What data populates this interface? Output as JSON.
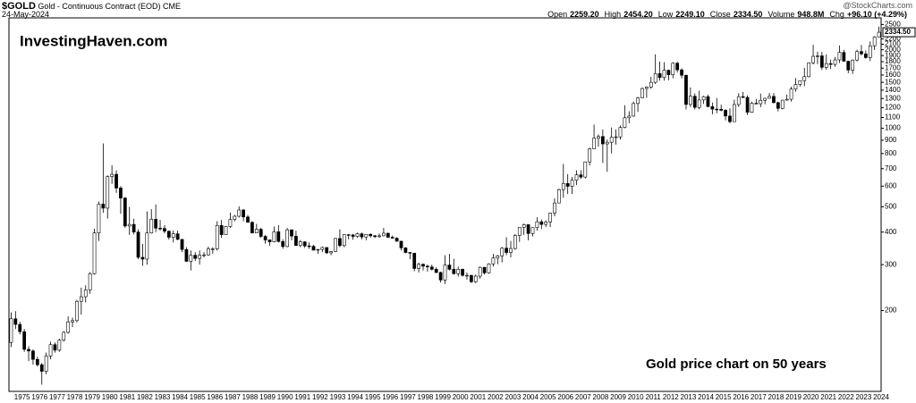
{
  "header": {
    "symbol": "$GOLD",
    "description": "Gold - Continuous Contract (EOD) CME",
    "date": "24-May-2024",
    "source": "@StockCharts.com",
    "stats": [
      {
        "label": "Open",
        "value": "2259.20"
      },
      {
        "label": "High",
        "value": "2454.20"
      },
      {
        "label": "Low",
        "value": "2249.10"
      },
      {
        "label": "Close",
        "value": "2334.50"
      },
      {
        "label": "Volume",
        "value": "948.8M"
      },
      {
        "label": "Chg",
        "value": "+96.10 (+4.29%)"
      }
    ]
  },
  "chart_data": {
    "type": "candlestick",
    "watermark": "InvestingHaven.com",
    "annotation": "Gold price chart on 50 years",
    "log_y": true,
    "up_color": "#ffffff",
    "down_color": "#000000",
    "ylim": [
      98,
      2650
    ],
    "yticks": [
      200,
      300,
      400,
      500,
      600,
      700,
      800,
      900,
      1000,
      1100,
      1200,
      1300,
      1400,
      1500,
      1600,
      1700,
      1800,
      1900,
      2000,
      2100,
      2200,
      2500
    ],
    "price_label": {
      "value": 2334.5,
      "label": "2334.50"
    },
    "categories": [
      null,
      "1975",
      null,
      null,
      null,
      "1976",
      null,
      null,
      null,
      "1977",
      null,
      null,
      null,
      "1978",
      null,
      null,
      null,
      "1979",
      null,
      null,
      null,
      "1980",
      null,
      null,
      null,
      "1981",
      null,
      null,
      null,
      "1982",
      null,
      null,
      null,
      "1983",
      null,
      null,
      null,
      "1984",
      null,
      null,
      null,
      "1985",
      null,
      null,
      null,
      "1986",
      null,
      null,
      null,
      "1987",
      null,
      null,
      null,
      "1988",
      null,
      null,
      null,
      "1989",
      null,
      null,
      null,
      "1990",
      null,
      null,
      null,
      "1991",
      null,
      null,
      null,
      "1992",
      null,
      null,
      null,
      "1993",
      null,
      null,
      null,
      "1994",
      null,
      null,
      null,
      "1995",
      null,
      null,
      null,
      "1996",
      null,
      null,
      null,
      "1997",
      null,
      null,
      null,
      "1998",
      null,
      null,
      null,
      "1999",
      null,
      null,
      null,
      "2000",
      null,
      null,
      null,
      "2001",
      null,
      null,
      null,
      "2002",
      null,
      null,
      null,
      "2003",
      null,
      null,
      null,
      "2004",
      null,
      null,
      null,
      "2005",
      null,
      null,
      null,
      "2006",
      null,
      null,
      null,
      "2007",
      null,
      null,
      null,
      "2008",
      null,
      null,
      null,
      "2009",
      null,
      null,
      null,
      "2010",
      null,
      null,
      null,
      "2011",
      null,
      null,
      null,
      "2012",
      null,
      null,
      null,
      "2013",
      null,
      null,
      null,
      "2014",
      null,
      null,
      null,
      "2015",
      null,
      null,
      null,
      "2016",
      null,
      null,
      null,
      "2017",
      null,
      null,
      null,
      "2018",
      null,
      null,
      null,
      "2019",
      null,
      null,
      null,
      "2020",
      null,
      null,
      null,
      "2021",
      null,
      null,
      null,
      "2022",
      null,
      null,
      null,
      "2023",
      null,
      null,
      null,
      "2024",
      null
    ],
    "ohlc": [
      [
        151,
        197,
        145,
        186
      ],
      [
        186,
        199,
        170,
        177
      ],
      [
        177,
        181,
        162,
        166
      ],
      [
        166,
        170,
        139,
        142
      ],
      [
        142,
        146,
        128,
        140
      ],
      [
        140,
        142,
        124,
        130
      ],
      [
        130,
        133,
        122,
        124
      ],
      [
        124,
        126,
        104,
        117
      ],
      [
        117,
        138,
        114,
        134
      ],
      [
        134,
        152,
        130,
        148
      ],
      [
        148,
        151,
        138,
        141
      ],
      [
        141,
        156,
        139,
        154
      ],
      [
        154,
        167,
        152,
        165
      ],
      [
        165,
        190,
        163,
        181
      ],
      [
        181,
        188,
        173,
        183
      ],
      [
        183,
        220,
        180,
        217
      ],
      [
        217,
        245,
        193,
        226
      ],
      [
        226,
        250,
        215,
        240
      ],
      [
        240,
        281,
        232,
        277
      ],
      [
        277,
        412,
        275,
        397
      ],
      [
        397,
        524,
        370,
        512
      ],
      [
        512,
        875,
        474,
        494
      ],
      [
        494,
        660,
        450,
        653
      ],
      [
        653,
        722,
        612,
        666
      ],
      [
        666,
        690,
        565,
        590
      ],
      [
        590,
        600,
        470,
        540
      ],
      [
        540,
        545,
        415,
        422
      ],
      [
        422,
        500,
        390,
        428
      ],
      [
        428,
        450,
        392,
        400
      ],
      [
        400,
        410,
        315,
        320
      ],
      [
        320,
        360,
        297,
        315
      ],
      [
        315,
        480,
        300,
        397
      ],
      [
        397,
        490,
        395,
        448
      ],
      [
        448,
        510,
        400,
        414
      ],
      [
        414,
        445,
        405,
        413
      ],
      [
        413,
        425,
        395,
        403
      ],
      [
        403,
        405,
        374,
        382
      ],
      [
        382,
        405,
        365,
        394
      ],
      [
        394,
        405,
        372,
        375
      ],
      [
        375,
        376,
        335,
        343
      ],
      [
        343,
        350,
        307,
        309
      ],
      [
        309,
        340,
        285,
        326
      ],
      [
        326,
        335,
        310,
        317
      ],
      [
        317,
        340,
        300,
        326
      ],
      [
        326,
        335,
        320,
        327
      ],
      [
        327,
        352,
        325,
        345
      ],
      [
        345,
        350,
        330,
        345
      ],
      [
        345,
        440,
        340,
        424
      ],
      [
        424,
        445,
        380,
        391
      ],
      [
        391,
        422,
        390,
        420
      ],
      [
        420,
        475,
        415,
        447
      ],
      [
        447,
        465,
        440,
        460
      ],
      [
        460,
        502,
        455,
        486
      ],
      [
        486,
        490,
        440,
        457
      ],
      [
        457,
        465,
        435,
        436
      ],
      [
        436,
        440,
        395,
        397
      ],
      [
        397,
        430,
        396,
        410
      ],
      [
        410,
        415,
        380,
        385
      ],
      [
        385,
        390,
        361,
        373
      ],
      [
        373,
        375,
        355,
        367
      ],
      [
        367,
        420,
        365,
        401
      ],
      [
        401,
        425,
        365,
        368
      ],
      [
        368,
        375,
        345,
        352
      ],
      [
        352,
        415,
        350,
        408
      ],
      [
        408,
        410,
        372,
        386
      ],
      [
        386,
        405,
        355,
        355
      ],
      [
        355,
        373,
        350,
        367
      ],
      [
        367,
        369,
        348,
        354
      ],
      [
        354,
        365,
        345,
        353
      ],
      [
        353,
        357,
        340,
        341
      ],
      [
        341,
        345,
        330,
        343
      ],
      [
        343,
        352,
        335,
        349
      ],
      [
        349,
        350,
        330,
        333
      ],
      [
        333,
        338,
        326,
        337
      ],
      [
        337,
        380,
        335,
        378
      ],
      [
        378,
        410,
        350,
        355
      ],
      [
        355,
        392,
        350,
        391
      ],
      [
        391,
        393,
        375,
        390
      ],
      [
        390,
        393,
        374,
        385
      ],
      [
        385,
        398,
        380,
        394
      ],
      [
        394,
        398,
        375,
        383
      ],
      [
        383,
        393,
        372,
        392
      ],
      [
        392,
        396,
        381,
        387
      ],
      [
        387,
        390,
        380,
        384
      ],
      [
        384,
        395,
        380,
        387
      ],
      [
        387,
        415,
        385,
        396
      ],
      [
        396,
        397,
        380,
        382
      ],
      [
        382,
        388,
        377,
        379
      ],
      [
        379,
        382,
        367,
        369
      ],
      [
        369,
        370,
        340,
        348
      ],
      [
        348,
        350,
        332,
        334
      ],
      [
        334,
        335,
        315,
        332
      ],
      [
        332,
        333,
        283,
        290
      ],
      [
        290,
        305,
        280,
        301
      ],
      [
        301,
        303,
        285,
        296
      ],
      [
        296,
        300,
        282,
        294
      ],
      [
        294,
        300,
        285,
        288
      ],
      [
        288,
        293,
        278,
        280
      ],
      [
        280,
        282,
        256,
        262
      ],
      [
        262,
        326,
        253,
        299
      ],
      [
        299,
        330,
        285,
        288
      ],
      [
        288,
        316,
        275,
        277
      ],
      [
        277,
        295,
        270,
        288
      ],
      [
        288,
        290,
        270,
        273
      ],
      [
        273,
        280,
        263,
        273
      ],
      [
        273,
        274,
        255,
        258
      ],
      [
        258,
        275,
        255,
        271
      ],
      [
        271,
        295,
        265,
        293
      ],
      [
        293,
        294,
        275,
        279
      ],
      [
        279,
        304,
        277,
        302
      ],
      [
        302,
        330,
        295,
        318
      ],
      [
        318,
        327,
        301,
        324
      ],
      [
        324,
        350,
        306,
        347
      ],
      [
        347,
        382,
        326,
        334
      ],
      [
        334,
        370,
        320,
        346
      ],
      [
        346,
        393,
        342,
        388
      ],
      [
        388,
        417,
        367,
        417
      ],
      [
        417,
        431,
        390,
        427
      ],
      [
        427,
        428,
        372,
        395
      ],
      [
        395,
        416,
        385,
        416
      ],
      [
        416,
        456,
        405,
        438
      ],
      [
        438,
        447,
        411,
        428
      ],
      [
        428,
        443,
        418,
        437
      ],
      [
        437,
        474,
        418,
        473
      ],
      [
        473,
        539,
        460,
        517
      ],
      [
        517,
        587,
        516,
        582
      ],
      [
        582,
        730,
        542,
        614
      ],
      [
        614,
        667,
        560,
        599
      ],
      [
        599,
        650,
        560,
        632
      ],
      [
        632,
        690,
        606,
        663
      ],
      [
        663,
        690,
        640,
        650
      ],
      [
        650,
        745,
        642,
        743
      ],
      [
        743,
        842,
        720,
        834
      ],
      [
        834,
        1033,
        834,
        916
      ],
      [
        916,
        947,
        850,
        930
      ],
      [
        930,
        990,
        736,
        871
      ],
      [
        871,
        905,
        681,
        884
      ],
      [
        884,
        1007,
        801,
        924
      ],
      [
        924,
        990,
        866,
        927
      ],
      [
        927,
        1024,
        905,
        1007
      ],
      [
        1007,
        1226,
        1000,
        1097
      ],
      [
        1097,
        1162,
        1045,
        1113
      ],
      [
        1113,
        1266,
        1108,
        1244
      ],
      [
        1244,
        1318,
        1155,
        1307
      ],
      [
        1307,
        1432,
        1307,
        1421
      ],
      [
        1421,
        1448,
        1308,
        1439
      ],
      [
        1439,
        1577,
        1418,
        1500
      ],
      [
        1500,
        1921,
        1478,
        1620
      ],
      [
        1620,
        1803,
        1523,
        1566
      ],
      [
        1566,
        1791,
        1523,
        1669
      ],
      [
        1669,
        1678,
        1527,
        1604
      ],
      [
        1604,
        1790,
        1555,
        1776
      ],
      [
        1776,
        1798,
        1635,
        1675
      ],
      [
        1675,
        1697,
        1555,
        1597
      ],
      [
        1597,
        1604,
        1180,
        1234
      ],
      [
        1234,
        1434,
        1207,
        1327
      ],
      [
        1327,
        1361,
        1180,
        1202
      ],
      [
        1202,
        1393,
        1182,
        1284
      ],
      [
        1284,
        1333,
        1240,
        1322
      ],
      [
        1322,
        1346,
        1204,
        1211
      ],
      [
        1211,
        1255,
        1131,
        1184
      ],
      [
        1184,
        1307,
        1142,
        1183
      ],
      [
        1183,
        1232,
        1162,
        1172
      ],
      [
        1172,
        1184,
        1072,
        1114
      ],
      [
        1114,
        1192,
        1046,
        1060
      ],
      [
        1060,
        1287,
        1058,
        1233
      ],
      [
        1233,
        1362,
        1208,
        1322
      ],
      [
        1322,
        1378,
        1305,
        1313
      ],
      [
        1313,
        1337,
        1124,
        1152
      ],
      [
        1152,
        1264,
        1146,
        1247
      ],
      [
        1247,
        1296,
        1240,
        1242
      ],
      [
        1242,
        1358,
        1204,
        1280
      ],
      [
        1280,
        1310,
        1236,
        1303
      ],
      [
        1303,
        1366,
        1303,
        1325
      ],
      [
        1325,
        1365,
        1246,
        1254
      ],
      [
        1254,
        1264,
        1160,
        1192
      ],
      [
        1192,
        1287,
        1182,
        1282
      ],
      [
        1282,
        1347,
        1276,
        1292
      ],
      [
        1292,
        1442,
        1266,
        1413
      ],
      [
        1413,
        1557,
        1381,
        1472
      ],
      [
        1472,
        1525,
        1445,
        1523
      ],
      [
        1523,
        1704,
        1450,
        1577
      ],
      [
        1577,
        1789,
        1567,
        1781
      ],
      [
        1781,
        2089,
        1757,
        1887
      ],
      [
        1887,
        1966,
        1764,
        1895
      ],
      [
        1895,
        1962,
        1673,
        1713
      ],
      [
        1713,
        1919,
        1677,
        1770
      ],
      [
        1770,
        1834,
        1687,
        1757
      ],
      [
        1757,
        1877,
        1721,
        1829
      ],
      [
        1829,
        2078,
        1780,
        1954
      ],
      [
        1954,
        1998,
        1807,
        1807
      ],
      [
        1807,
        1814,
        1626,
        1672
      ],
      [
        1672,
        1836,
        1616,
        1826
      ],
      [
        1826,
        2001,
        1804,
        1969
      ],
      [
        1969,
        2085,
        1900,
        1929
      ],
      [
        1929,
        1987,
        1848,
        1866
      ],
      [
        1866,
        2152,
        1810,
        2071
      ],
      [
        2071,
        2257,
        1996,
        2238
      ],
      [
        2238,
        2454,
        2236,
        2334.5
      ]
    ]
  }
}
